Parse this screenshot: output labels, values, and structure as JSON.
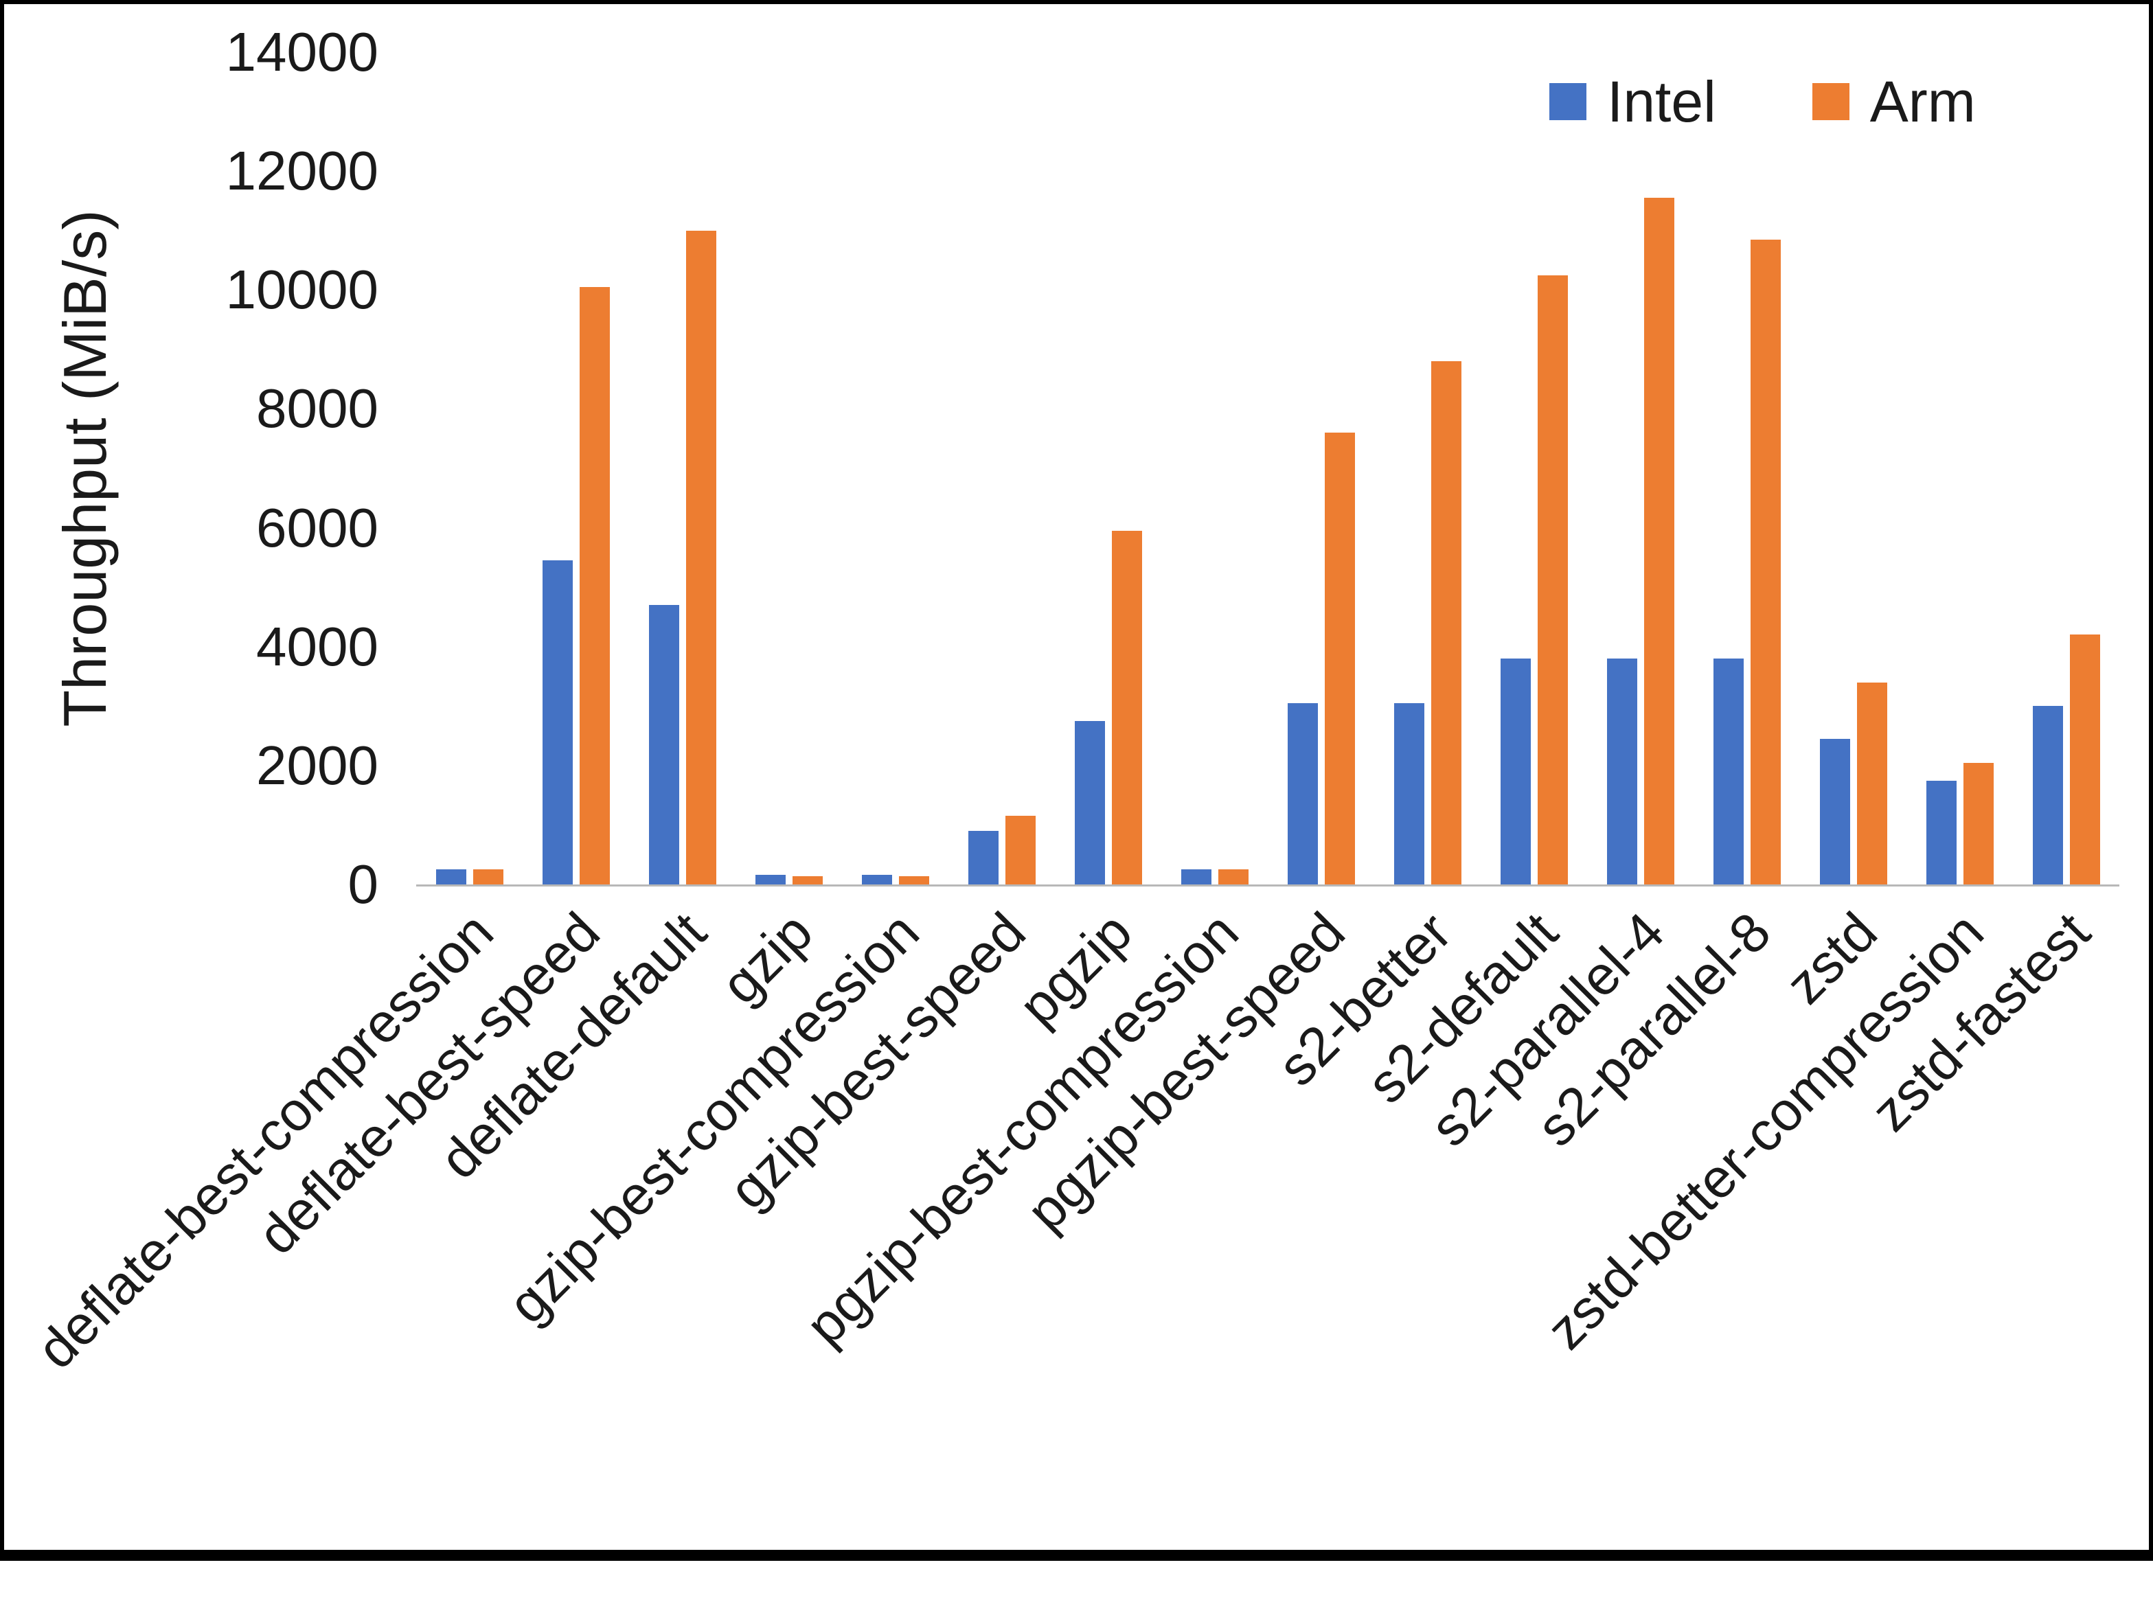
{
  "chart_data": {
    "type": "bar",
    "title": "",
    "xlabel": "",
    "ylabel": "Throughput (MiB/s)",
    "ylim": [
      0,
      14000
    ],
    "ytick_step": 2000,
    "grid": false,
    "legend_position": "top-right",
    "axis_line_color": "#b8b8b8",
    "categories": [
      "deflate-best-compression",
      "deflate-best-speed",
      "deflate-default",
      "gzip",
      "gzip-best-compression",
      "gzip-best-speed",
      "pgzip",
      "pgzip-best-compression",
      "pgzip-best-speed",
      "s2-better",
      "s2-default",
      "s2-parallel-4",
      "s2-parallel-8",
      "zstd",
      "zstd-better-compression",
      "zstd-fastest"
    ],
    "series": [
      {
        "name": "Intel",
        "color": "#4472C4",
        "values": [
          250,
          5450,
          4700,
          160,
          160,
          900,
          2750,
          250,
          3050,
          3050,
          3800,
          3800,
          3800,
          2450,
          1750,
          3000
        ]
      },
      {
        "name": "Arm",
        "color": "#ED7D31",
        "values": [
          250,
          10050,
          11000,
          140,
          140,
          1150,
          5950,
          260,
          7600,
          8800,
          10250,
          11550,
          10850,
          3400,
          2050,
          4200
        ]
      }
    ]
  }
}
